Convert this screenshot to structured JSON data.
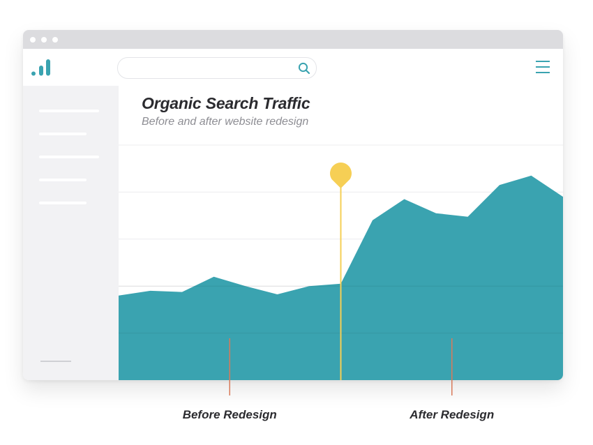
{
  "search": {
    "value": "",
    "placeholder": ""
  },
  "icons": {
    "logo": "bar-chart-logo-icon",
    "search": "search-icon",
    "menu": "hamburger-menu-icon",
    "marker": "map-pin-marker-icon"
  },
  "colors": {
    "accent": "#3aa3b0",
    "marker": "#f6cf55",
    "tick": "#d97a5a",
    "titlebar": "#dcdcdf",
    "sidebar": "#f2f2f4"
  },
  "chart_data": {
    "type": "area",
    "title": "Organic Search Traffic",
    "subtitle": "Before and after website redesign",
    "x": [
      0,
      1,
      2,
      3,
      4,
      5,
      6,
      7,
      8,
      9,
      10,
      11,
      12,
      13,
      14
    ],
    "values": [
      36,
      38,
      37.5,
      44,
      40,
      36.5,
      40,
      41,
      68,
      77,
      71,
      69.5,
      83,
      87,
      78
    ],
    "ylim": [
      0,
      100
    ],
    "grid": true,
    "redesign_marker_x": 7,
    "annotations": [
      {
        "label": "Before Redesign",
        "x": 3.5
      },
      {
        "label": "After Redesign",
        "x": 10.5
      }
    ]
  }
}
